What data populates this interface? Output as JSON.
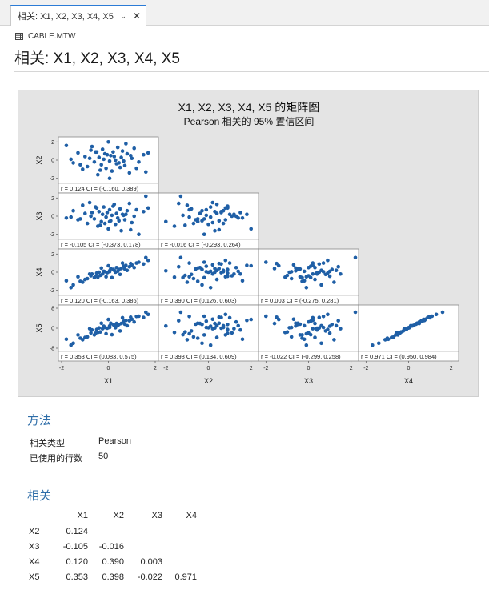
{
  "tab": {
    "label": "相关: X1, X2, X3, X4, X5",
    "dropdown_icon": "chevron-down-icon",
    "close_icon": "close-icon"
  },
  "worksheet": {
    "name": "CABLE.MTW",
    "icon": "worksheet-grid-icon"
  },
  "page_title": "相关: X1, X2, X3, X4, X5",
  "chart_data": {
    "type": "scatter",
    "title": "X1, X2, X3, X4, X5 的矩阵图",
    "subtitle": "Pearson 相关的 95% 置信区间",
    "variables": [
      "X1",
      "X2",
      "X3",
      "X4",
      "X5"
    ],
    "variable_ranges": {
      "X1": [
        -2,
        2
      ],
      "X2": [
        -2.2,
        2.2
      ],
      "X3": [
        -2.2,
        2.2
      ],
      "X4": [
        -2.2,
        2.2
      ],
      "X5": [
        -8,
        8
      ]
    },
    "axis_ticks": {
      "X1": [
        -2,
        0,
        2
      ],
      "X2": [
        -2,
        0,
        2
      ],
      "X3": [
        -2,
        0,
        2
      ],
      "X4": [
        -2,
        0,
        2
      ],
      "X5": [
        -8,
        0,
        8
      ]
    },
    "panels": [
      {
        "row": "X2",
        "col": "X1",
        "caption": "r = 0.124  CI = (-0.160, 0.389)"
      },
      {
        "row": "X3",
        "col": "X1",
        "caption": "r = -0.105  CI = (-0.373, 0.178)"
      },
      {
        "row": "X3",
        "col": "X2",
        "caption": "r = -0.016  CI = (-0.293, 0.264)"
      },
      {
        "row": "X4",
        "col": "X1",
        "caption": "r = 0.120  CI = (-0.163, 0.386)"
      },
      {
        "row": "X4",
        "col": "X2",
        "caption": "r = 0.390  CI = (0.126, 0.603)"
      },
      {
        "row": "X4",
        "col": "X3",
        "caption": "r = 0.003  CI = (-0.275, 0.281)"
      },
      {
        "row": "X5",
        "col": "X1",
        "caption": "r = 0.353  CI = (0.083, 0.575)"
      },
      {
        "row": "X5",
        "col": "X2",
        "caption": "r = 0.398  CI = (0.134, 0.609)"
      },
      {
        "row": "X5",
        "col": "X3",
        "caption": "r = -0.022  CI = (-0.299, 0.258)"
      },
      {
        "row": "X5",
        "col": "X4",
        "caption": "r = 0.971  CI = (0.950, 0.984)"
      }
    ],
    "observations": {
      "X1": [
        -1.8,
        -1.5,
        -1.3,
        -1.1,
        -1.0,
        -0.9,
        -0.8,
        -0.75,
        -0.6,
        -0.5,
        -0.45,
        -0.4,
        -0.3,
        -0.25,
        -0.2,
        -0.1,
        -0.05,
        0.0,
        0.05,
        0.1,
        0.15,
        0.2,
        0.3,
        0.35,
        0.4,
        0.5,
        0.55,
        0.6,
        0.7,
        0.8,
        0.9,
        1.0,
        1.1,
        1.3,
        1.5,
        1.7,
        -1.2,
        -0.7,
        -0.35,
        0.25,
        0.45,
        0.75,
        1.2,
        -0.15,
        0.65,
        -0.55,
        0.05,
        0.95,
        1.6,
        -1.6
      ],
      "X2": [
        1.6,
        -0.3,
        0.8,
        -1.0,
        0.4,
        -0.7,
        0.2,
        1.1,
        -0.2,
        0.9,
        -1.6,
        0.3,
        -0.5,
        1.2,
        0.1,
        -0.9,
        0.6,
        2.0,
        -0.1,
        0.5,
        -1.2,
        0.9,
        0.0,
        -0.4,
        1.4,
        -0.8,
        0.3,
        1.0,
        -0.6,
        0.7,
        -1.4,
        0.2,
        1.3,
        -0.2,
        0.6,
        0.8,
        -0.5,
        1.5,
        -1.1,
        0.4,
        -0.3,
        1.8,
        -0.9,
        0.7,
        -0.1,
        0.9,
        -2.0,
        0.5,
        -1.3,
        0.1
      ],
      "X3": [
        -0.2,
        0.6,
        -0.4,
        1.2,
        0.3,
        -0.8,
        1.5,
        0.0,
        -0.3,
        0.9,
        -1.1,
        0.5,
        -0.6,
        0.2,
        1.0,
        -0.1,
        0.4,
        -1.4,
        0.7,
        -0.5,
        0.1,
        1.1,
        -0.9,
        0.3,
        -0.2,
        0.8,
        -1.6,
        0.2,
        -0.4,
        0.6,
        1.4,
        -0.7,
        0.0,
        -2.0,
        0.5,
        0.9,
        -0.3,
        0.4,
        -1.0,
        1.3,
        -0.5,
        0.2,
        0.7,
        -0.8,
        0.1,
        1.0,
        -0.6,
        -1.5,
        2.2,
        -0.1
      ],
      "X4": [
        -0.95,
        -1.4,
        -0.5,
        -1.1,
        -0.8,
        -0.7,
        -0.2,
        -0.4,
        -0.6,
        -0.1,
        -0.55,
        0.0,
        0.45,
        -0.2,
        0.1,
        -0.5,
        -0.05,
        0.7,
        0.05,
        0.4,
        -0.6,
        0.3,
        0.0,
        0.5,
        0.1,
        -0.25,
        0.4,
        1.0,
        0.35,
        0.2,
        0.6,
        0.8,
        0.5,
        1.1,
        0.9,
        1.3,
        -1.0,
        -0.2,
        -0.35,
        0.2,
        0.3,
        0.75,
        1.0,
        0.05,
        0.65,
        -0.45,
        0.15,
        0.95,
        1.6,
        -1.7
      ],
      "X5": [
        -4.4,
        -6.0,
        -2.7,
        -4.6,
        -3.7,
        -3.5,
        -0.2,
        -1.9,
        -2.7,
        -0.5,
        -1.7,
        0.1,
        2.0,
        -0.2,
        0.8,
        -2.2,
        0.0,
        3.5,
        0.3,
        2.0,
        -2.6,
        1.5,
        0.2,
        1.9,
        1.0,
        -1.1,
        1.9,
        4.2,
        1.6,
        1.0,
        3.0,
        3.6,
        2.5,
        4.8,
        4.3,
        5.5,
        -4.0,
        -0.7,
        -1.5,
        1.0,
        1.5,
        3.1,
        4.7,
        0.3,
        2.8,
        -2.0,
        0.9,
        4.4,
        6.4,
        -6.8
      ]
    }
  },
  "method": {
    "title": "方法",
    "rows": [
      {
        "label": "相关类型",
        "value": "Pearson"
      },
      {
        "label": "已使用的行数",
        "value": "50"
      }
    ]
  },
  "correlation": {
    "title": "相关",
    "columns": [
      "X1",
      "X2",
      "X3",
      "X4"
    ],
    "rows": [
      {
        "label": "X2",
        "values": [
          "0.124"
        ]
      },
      {
        "label": "X3",
        "values": [
          "-0.105",
          "-0.016"
        ]
      },
      {
        "label": "X4",
        "values": [
          "0.120",
          "0.390",
          "0.003"
        ]
      },
      {
        "label": "X5",
        "values": [
          "0.353",
          "0.398",
          "-0.022",
          "0.971"
        ]
      }
    ]
  },
  "colors": {
    "point": "#1f5fa6",
    "tab_accent": "#2b7bd6",
    "section_title": "#2e6da8",
    "graph_bg": "#e4e4e4"
  }
}
